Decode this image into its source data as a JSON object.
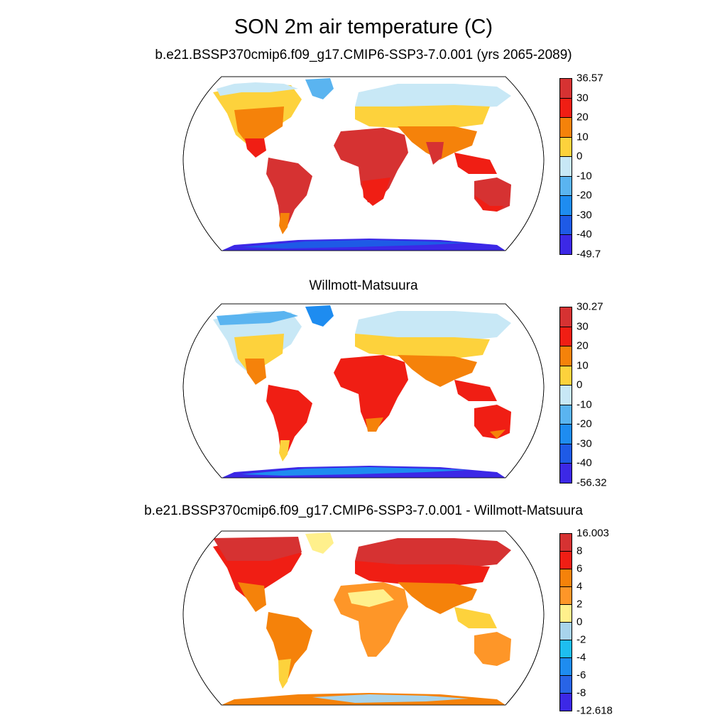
{
  "title": "SON 2m air temperature (C)",
  "panels": [
    {
      "title": "b.e21.BSSP370cmip6.f09_g17.CMIP6-SSP3-7.0.001 (yrs 2065-2089)",
      "colorbar": {
        "labels": [
          "36.57",
          "30",
          "20",
          "10",
          "0",
          "-10",
          "-20",
          "-30",
          "-40",
          "-49.7"
        ],
        "colors": [
          "#d63232",
          "#f01e14",
          "#f5820a",
          "#fdd23c",
          "#c8e8f6",
          "#5ab4f0",
          "#1e8cf0",
          "#1e5ae6",
          "#3c28e6"
        ]
      }
    },
    {
      "title": "Willmott-Matsuura",
      "colorbar": {
        "labels": [
          "30.27",
          "30",
          "20",
          "10",
          "0",
          "-10",
          "-20",
          "-30",
          "-40",
          "-56.32"
        ],
        "colors": [
          "#d63232",
          "#f01e14",
          "#f5820a",
          "#fdd23c",
          "#c8e8f6",
          "#5ab4f0",
          "#1e8cf0",
          "#1e5ae6",
          "#3c28e6"
        ]
      }
    },
    {
      "title": "b.e21.BSSP370cmip6.f09_g17.CMIP6-SSP3-7.0.001 - Willmott-Matsuura",
      "colorbar": {
        "labels": [
          "16.003",
          "8",
          "6",
          "4",
          "2",
          "0",
          "-2",
          "-4",
          "-6",
          "-8",
          "-12.618"
        ],
        "colors": [
          "#d63232",
          "#f01e14",
          "#f5820a",
          "#fe9628",
          "#fff08c",
          "#a8d4ec",
          "#1ebef0",
          "#1e8cf0",
          "#2864e6",
          "#3c28e6"
        ]
      }
    }
  ]
}
